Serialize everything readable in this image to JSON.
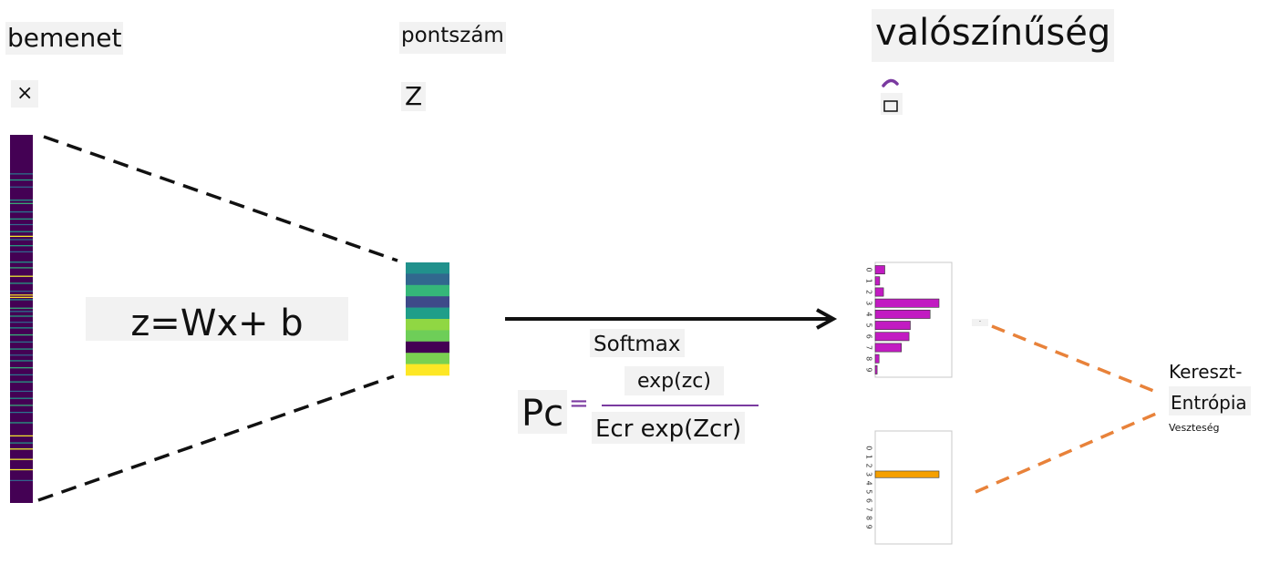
{
  "labels": {
    "input": "bemenet",
    "input_symbol": "×",
    "scores": "pontszám",
    "scores_symbol": "Z",
    "probability": "valószínűség",
    "equation": "z=Wx+ b",
    "softmax": "Softmax",
    "numerator": "exp(zc)",
    "pc": "Pc",
    "equals": "=",
    "denominator": "Ecr exp(Zcr)",
    "loss_line1": "Kereszt-",
    "loss_line2": "Entrópia",
    "loss_line3": "Veszteség",
    "small_mark": "-"
  },
  "colors": {
    "dash_dark": "#111111",
    "dash_orange": "#e8823a",
    "predicted_bars": "#c21bc2",
    "target_bar": "#f5a000",
    "probability_symbol": "#7a3aa0",
    "fraction_line": "#7a3aa0"
  },
  "input_vector": {
    "length": 784,
    "bright_rows": [
      82,
      95,
      110,
      138,
      145,
      163,
      178,
      190,
      205,
      215,
      222,
      235,
      248,
      270,
      282,
      300,
      315,
      332,
      350,
      368,
      375,
      385,
      398,
      410,
      425,
      440,
      455,
      468,
      480,
      495,
      510,
      525,
      545,
      560,
      575,
      590,
      612,
      640,
      655,
      668,
      690,
      712,
      735
    ],
    "yellow_rows": [
      215,
      300,
      340,
      345,
      640,
      668,
      690,
      712
    ]
  },
  "score_vector": [
    "#21918c",
    "#31688e",
    "#35b779",
    "#3e4a89",
    "#1f9e89",
    "#90d743",
    "#6ece58",
    "#440154",
    "#7ad151",
    "#fde725"
  ],
  "chart_data": [
    {
      "type": "bar",
      "orientation": "horizontal",
      "role": "predicted-probabilities",
      "categories": [
        "0",
        "1",
        "2",
        "3",
        "4",
        "5",
        "6",
        "7",
        "8",
        "9"
      ],
      "tick_labels": [
        "0",
        "1",
        "2",
        "3",
        "4",
        "5",
        "6",
        "7",
        "8",
        "9"
      ],
      "values": [
        0.15,
        0.07,
        0.13,
        1.0,
        0.86,
        0.55,
        0.53,
        0.41,
        0.06,
        0.03
      ],
      "xlim": [
        0,
        1.2
      ]
    },
    {
      "type": "bar",
      "orientation": "horizontal",
      "role": "target-one-hot",
      "categories": [
        "0",
        "1",
        "2",
        "3",
        "4",
        "5",
        "6",
        "7",
        "8",
        "9"
      ],
      "tick_labels": [
        "0",
        "1",
        "2",
        "3",
        "4",
        "5",
        "6",
        "7",
        "8",
        "9"
      ],
      "values": [
        0,
        0,
        0,
        1,
        0,
        0,
        0,
        0,
        0,
        0
      ],
      "xlim": [
        0,
        1.2
      ]
    }
  ]
}
